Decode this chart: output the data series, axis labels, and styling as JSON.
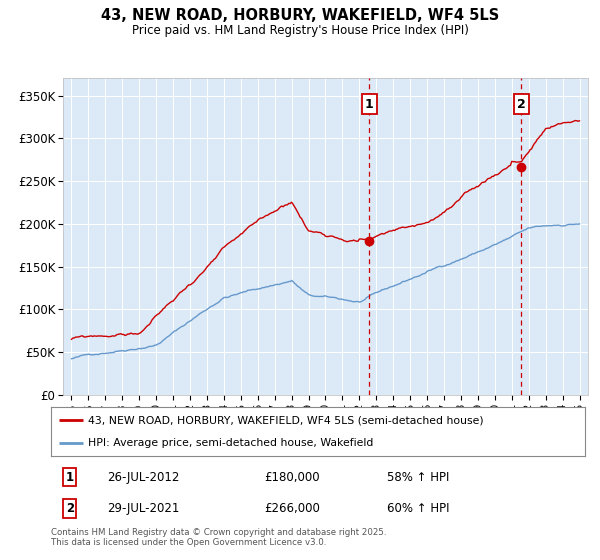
{
  "title": "43, NEW ROAD, HORBURY, WAKEFIELD, WF4 5LS",
  "subtitle": "Price paid vs. HM Land Registry's House Price Index (HPI)",
  "background_color": "#ffffff",
  "plot_bg_color": "#dce9f7",
  "legend_label_red": "43, NEW ROAD, HORBURY, WAKEFIELD, WF4 5LS (semi-detached house)",
  "legend_label_blue": "HPI: Average price, semi-detached house, Wakefield",
  "marker1_date": "26-JUL-2012",
  "marker1_price": 180000,
  "marker1_hpi": "58% ↑ HPI",
  "marker1_x": 2012.57,
  "marker1_y_red": 180000,
  "marker2_date": "29-JUL-2021",
  "marker2_price": 266000,
  "marker2_hpi": "60% ↑ HPI",
  "marker2_x": 2021.57,
  "marker2_y_red": 266000,
  "footnote": "Contains HM Land Registry data © Crown copyright and database right 2025.\nThis data is licensed under the Open Government Licence v3.0.",
  "ylim": [
    0,
    370000
  ],
  "xlim": [
    1994.5,
    2025.5
  ],
  "yticks": [
    0,
    50000,
    100000,
    150000,
    200000,
    250000,
    300000,
    350000
  ],
  "ytick_labels": [
    "£0",
    "£50K",
    "£100K",
    "£150K",
    "£200K",
    "£250K",
    "£300K",
    "£350K"
  ],
  "red_color": "#cc0000",
  "blue_color": "#6699cc"
}
